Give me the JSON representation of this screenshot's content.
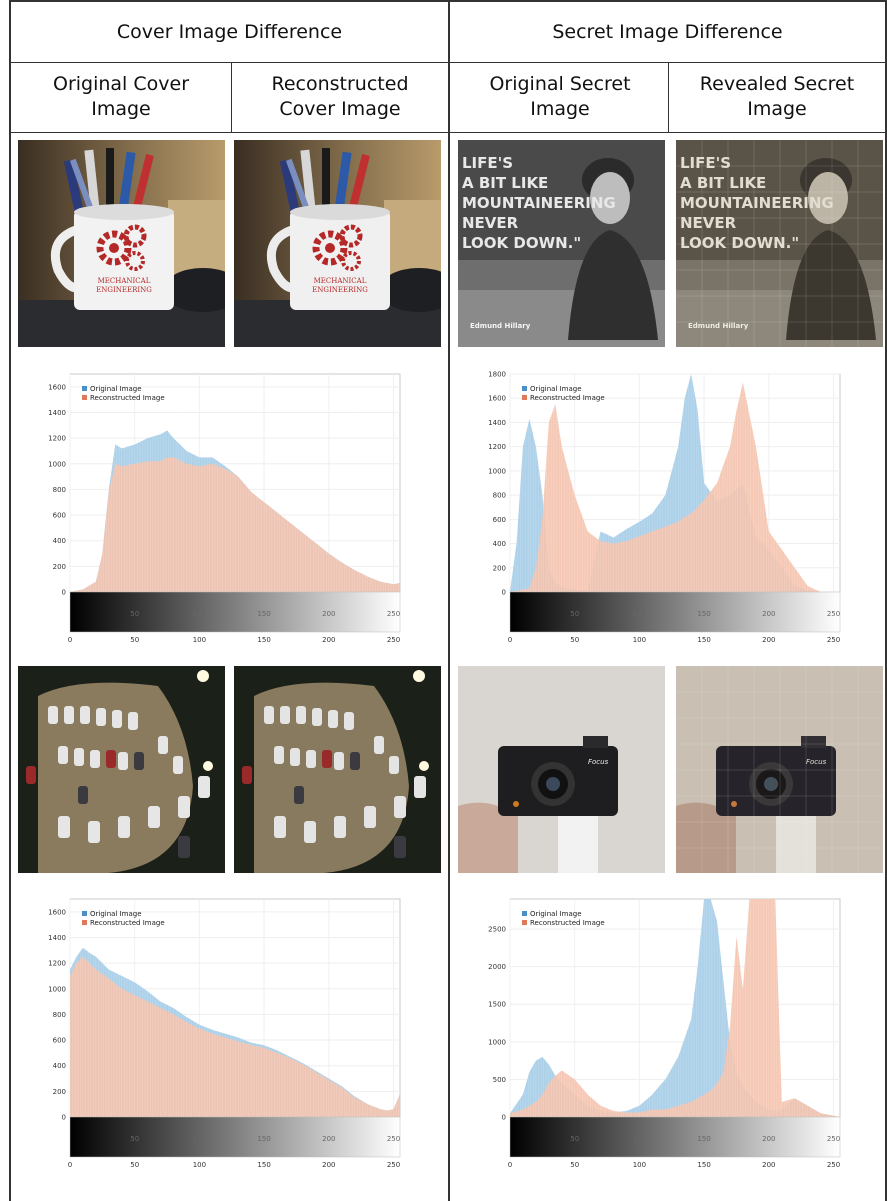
{
  "headers": {
    "cover_group": "Cover Image Difference",
    "secret_group": "Secret Image Difference",
    "original_cover": "Original Cover Image",
    "reconstructed_cover": "Reconstructed Cover Image",
    "original_secret": "Original Secret Image",
    "revealed_secret": "Revealed Secret Image"
  },
  "images": {
    "secret1_text_lines": [
      "LIFE'S",
      "A BIT LIKE",
      "MOUNTAINEERING",
      "NEVER",
      "LOOK DOWN.\""
    ],
    "secret1_caption": "Edmund Hillary",
    "mug_text_line1": "MECHANICAL",
    "mug_text_line2": "ENGINEERING",
    "camera_brand": "Focus"
  },
  "colors": {
    "original": "#a9cfe8",
    "reconstructed": "#f5c3ae"
  },
  "chart_data": [
    {
      "type": "area",
      "panel": "cover-1",
      "legend": [
        "Original Image",
        "Reconstructed Image"
      ],
      "legend_position": "top-left",
      "xlim": [
        0,
        255
      ],
      "ylim": [
        0,
        1700
      ],
      "xticks": [
        0,
        50,
        100,
        150,
        200,
        250
      ],
      "yticks": [
        0,
        200,
        400,
        600,
        800,
        1000,
        1200,
        1400,
        1600
      ],
      "gradient_ticks": [
        0,
        50,
        100,
        150,
        200,
        250
      ],
      "grid": true,
      "series": [
        {
          "name": "Original Image",
          "x": [
            0,
            10,
            20,
            25,
            30,
            35,
            40,
            50,
            60,
            70,
            75,
            80,
            90,
            100,
            110,
            120,
            130,
            140,
            150,
            160,
            170,
            180,
            190,
            200,
            210,
            220,
            230,
            240,
            250,
            255
          ],
          "values": [
            0,
            20,
            80,
            300,
            800,
            1150,
            1120,
            1150,
            1200,
            1230,
            1260,
            1200,
            1100,
            1050,
            1050,
            980,
            900,
            780,
            700,
            620,
            540,
            460,
            380,
            300,
            230,
            170,
            120,
            80,
            60,
            70
          ]
        },
        {
          "name": "Reconstructed Image",
          "x": [
            0,
            10,
            20,
            25,
            30,
            35,
            40,
            50,
            60,
            70,
            75,
            80,
            90,
            100,
            110,
            120,
            130,
            140,
            150,
            160,
            170,
            180,
            190,
            200,
            210,
            220,
            230,
            240,
            250,
            255
          ],
          "values": [
            0,
            20,
            80,
            300,
            780,
            1000,
            980,
            1000,
            1020,
            1020,
            1050,
            1050,
            1000,
            980,
            1000,
            960,
            900,
            780,
            700,
            620,
            540,
            460,
            380,
            300,
            230,
            170,
            120,
            80,
            60,
            70
          ]
        }
      ]
    },
    {
      "type": "area",
      "panel": "secret-1",
      "legend": [
        "Original Image",
        "Reconstructed Image"
      ],
      "legend_position": "top-left",
      "xlim": [
        0,
        255
      ],
      "ylim": [
        0,
        1800
      ],
      "xticks": [
        0,
        50,
        100,
        150,
        200,
        250
      ],
      "yticks": [
        0,
        200,
        400,
        600,
        800,
        1000,
        1200,
        1400,
        1600,
        1800
      ],
      "gradient_ticks": [
        0,
        50,
        100,
        150,
        200,
        250
      ],
      "grid": true,
      "series": [
        {
          "name": "Original Image",
          "x": [
            0,
            5,
            10,
            15,
            20,
            25,
            30,
            35,
            40,
            50,
            60,
            70,
            80,
            90,
            100,
            110,
            120,
            130,
            135,
            140,
            145,
            150,
            160,
            170,
            175,
            180,
            190,
            200,
            210,
            220,
            230,
            240,
            255
          ],
          "values": [
            0,
            400,
            1200,
            1430,
            1200,
            800,
            200,
            80,
            40,
            20,
            10,
            500,
            450,
            520,
            580,
            650,
            800,
            1200,
            1600,
            1800,
            1500,
            900,
            750,
            800,
            850,
            900,
            450,
            350,
            200,
            60,
            10,
            0,
            0
          ]
        },
        {
          "name": "Reconstructed Image",
          "x": [
            0,
            5,
            10,
            15,
            20,
            25,
            30,
            35,
            40,
            50,
            60,
            70,
            80,
            90,
            100,
            110,
            120,
            130,
            135,
            140,
            145,
            150,
            160,
            170,
            175,
            180,
            190,
            200,
            210,
            220,
            230,
            240,
            255
          ],
          "values": [
            0,
            10,
            20,
            30,
            200,
            600,
            1400,
            1550,
            1200,
            800,
            500,
            420,
            400,
            420,
            460,
            500,
            540,
            580,
            620,
            650,
            700,
            760,
            900,
            1200,
            1500,
            1730,
            1200,
            500,
            350,
            200,
            50,
            0,
            0
          ]
        }
      ]
    },
    {
      "type": "area",
      "panel": "cover-2",
      "legend": [
        "Original Image",
        "Reconstructed Image"
      ],
      "legend_position": "top-left",
      "xlim": [
        0,
        255
      ],
      "ylim": [
        0,
        1700
      ],
      "xticks": [
        0,
        50,
        100,
        150,
        200,
        250
      ],
      "yticks": [
        0,
        200,
        400,
        600,
        800,
        1000,
        1200,
        1400,
        1600
      ],
      "gradient_ticks": [
        0,
        50,
        100,
        150,
        200,
        250
      ],
      "grid": true,
      "series": [
        {
          "name": "Original Image",
          "x": [
            0,
            5,
            10,
            15,
            20,
            30,
            40,
            50,
            60,
            70,
            80,
            90,
            100,
            110,
            120,
            130,
            140,
            150,
            160,
            170,
            180,
            190,
            200,
            210,
            220,
            230,
            240,
            245,
            250,
            255
          ],
          "values": [
            1150,
            1250,
            1320,
            1280,
            1250,
            1150,
            1100,
            1050,
            980,
            900,
            850,
            780,
            720,
            680,
            650,
            620,
            580,
            560,
            520,
            470,
            420,
            360,
            300,
            240,
            160,
            100,
            60,
            50,
            60,
            180
          ]
        },
        {
          "name": "Reconstructed Image",
          "x": [
            0,
            5,
            10,
            15,
            20,
            30,
            40,
            50,
            60,
            70,
            80,
            90,
            100,
            110,
            120,
            130,
            140,
            150,
            160,
            170,
            180,
            190,
            200,
            210,
            220,
            230,
            240,
            245,
            250,
            255
          ],
          "values": [
            1100,
            1200,
            1250,
            1200,
            1150,
            1080,
            1000,
            950,
            900,
            850,
            800,
            740,
            690,
            650,
            620,
            590,
            560,
            540,
            500,
            460,
            410,
            350,
            290,
            230,
            150,
            100,
            60,
            50,
            60,
            180
          ]
        }
      ]
    },
    {
      "type": "area",
      "panel": "secret-2",
      "legend": [
        "Original Image",
        "Reconstructed Image"
      ],
      "legend_position": "top-left",
      "xlim": [
        0,
        255
      ],
      "ylim": [
        0,
        2900
      ],
      "xticks": [
        0,
        50,
        100,
        150,
        200,
        250
      ],
      "yticks": [
        0,
        500,
        1000,
        1500,
        2000,
        2500
      ],
      "gradient_ticks": [
        0,
        50,
        100,
        150,
        200,
        250
      ],
      "grid": true,
      "series": [
        {
          "name": "Original Image",
          "x": [
            0,
            10,
            15,
            20,
            25,
            30,
            35,
            40,
            50,
            60,
            70,
            80,
            90,
            100,
            110,
            120,
            130,
            140,
            145,
            150,
            155,
            160,
            165,
            170,
            175,
            180,
            185,
            190,
            200,
            205,
            210,
            220,
            230,
            240,
            255
          ],
          "values": [
            50,
            300,
            600,
            750,
            800,
            700,
            550,
            450,
            300,
            150,
            80,
            60,
            80,
            150,
            300,
            500,
            800,
            1300,
            2000,
            2900,
            2900,
            2600,
            1800,
            1000,
            600,
            400,
            300,
            200,
            100,
            80,
            100,
            250,
            150,
            50,
            0
          ]
        },
        {
          "name": "Reconstructed Image",
          "x": [
            0,
            10,
            15,
            20,
            25,
            30,
            35,
            40,
            50,
            60,
            70,
            80,
            90,
            100,
            110,
            120,
            130,
            140,
            145,
            150,
            155,
            160,
            165,
            170,
            175,
            180,
            185,
            190,
            200,
            205,
            210,
            220,
            230,
            240,
            255
          ],
          "values": [
            50,
            100,
            150,
            200,
            300,
            450,
            550,
            620,
            500,
            300,
            150,
            80,
            60,
            60,
            100,
            100,
            150,
            200,
            250,
            300,
            350,
            450,
            600,
            1200,
            2400,
            1700,
            2900,
            2900,
            2900,
            2900,
            200,
            250,
            150,
            50,
            0
          ]
        }
      ]
    }
  ]
}
